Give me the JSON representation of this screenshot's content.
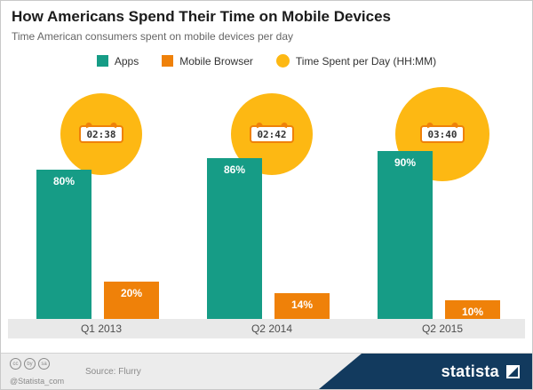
{
  "chart_data": {
    "type": "bar",
    "title": "How Americans Spend Their Time on Mobile Devices",
    "subtitle": "Time American consumers spent on mobile devices per day",
    "categories": [
      "Q1 2013",
      "Q2 2014",
      "Q2 2015"
    ],
    "series": [
      {
        "name": "Apps",
        "color": "#169c86",
        "values": [
          80,
          86,
          90
        ],
        "labels": [
          "80%",
          "86%",
          "90%"
        ]
      },
      {
        "name": "Mobile Browser",
        "color": "#ef8109",
        "values": [
          20,
          14,
          10
        ],
        "labels": [
          "20%",
          "14%",
          "10%"
        ]
      }
    ],
    "bubbles": {
      "name": "Time Spent per Day (HH:MM)",
      "color": "#fdb813",
      "values": [
        "02:38",
        "02:42",
        "03:40"
      ]
    },
    "xlabel": "",
    "ylabel": "",
    "unit": "%",
    "ylim": [
      0,
      100
    ],
    "grid": false,
    "legend_position": "top"
  },
  "footer": {
    "license_icons": [
      "cc",
      "by",
      "sa"
    ],
    "handle": "@Statista_com",
    "source": "Source: Flurry",
    "brand": "statista",
    "navy_color": "#123a5e"
  }
}
